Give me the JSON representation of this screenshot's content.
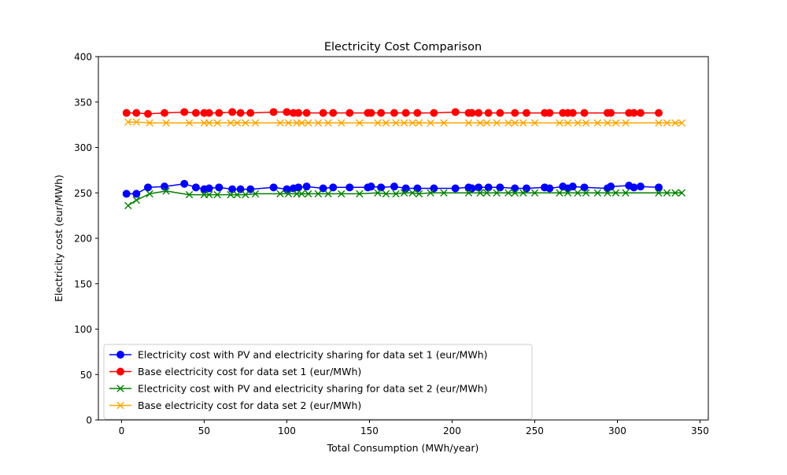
{
  "chart_data": {
    "type": "line",
    "title": "Electricity Cost Comparison",
    "xlabel": "Total Consumption (MWh/year)",
    "ylabel": "Electricity cost (eur/MWh)",
    "xlim": [
      -14,
      355
    ],
    "ylim": [
      0,
      400
    ],
    "xticks": [
      0,
      50,
      100,
      150,
      200,
      250,
      300,
      350
    ],
    "yticks": [
      0,
      50,
      100,
      150,
      200,
      250,
      300,
      350,
      400
    ],
    "grid": false,
    "legend_position": "lower-left",
    "series": [
      {
        "name": "Electricity cost with PV and electricity sharing for data set 1 (eur/MWh)",
        "color": "#0000ff",
        "marker": "circle",
        "x": [
          3,
          9,
          16,
          26,
          38,
          45,
          50,
          53,
          59,
          67,
          72,
          78,
          92,
          100,
          104,
          107,
          112,
          122,
          128,
          138,
          149,
          151,
          157,
          165,
          172,
          179,
          189,
          202,
          210,
          212,
          216,
          222,
          229,
          238,
          245,
          256,
          259,
          267,
          270,
          273,
          280,
          294,
          296,
          307,
          310,
          314,
          325
        ],
        "y": [
          249,
          249,
          256,
          257,
          260,
          256,
          254,
          255,
          256,
          254,
          254,
          254,
          256,
          254,
          255,
          256,
          257,
          255,
          256,
          256,
          256,
          257,
          256,
          257,
          255,
          255,
          255,
          255,
          256,
          255,
          256,
          256,
          256,
          255,
          255,
          256,
          255,
          257,
          255,
          257,
          256,
          255,
          257,
          258,
          256,
          257,
          256
        ]
      },
      {
        "name": "Base electricity cost for data set 1 (eur/MWh)",
        "color": "#ff0000",
        "marker": "circle",
        "x": [
          3,
          9,
          16,
          26,
          38,
          45,
          50,
          53,
          59,
          67,
          72,
          78,
          92,
          100,
          104,
          107,
          112,
          122,
          128,
          138,
          149,
          151,
          157,
          165,
          172,
          179,
          189,
          202,
          210,
          212,
          216,
          222,
          229,
          238,
          245,
          256,
          259,
          267,
          270,
          273,
          280,
          294,
          296,
          307,
          310,
          314,
          325
        ],
        "y": [
          338,
          338,
          337,
          338,
          339,
          338,
          338,
          338,
          338,
          339,
          338,
          338,
          339,
          339,
          338,
          338,
          338,
          338,
          338,
          338,
          338,
          338,
          338,
          338,
          338,
          338,
          338,
          339,
          338,
          338,
          338,
          338,
          338,
          338,
          338,
          338,
          338,
          338,
          338,
          338,
          338,
          338,
          338,
          338,
          338,
          338,
          338
        ]
      },
      {
        "name": "Electricity cost with PV and electricity sharing for data set 2 (eur/MWh)",
        "color": "#008000",
        "marker": "x",
        "x": [
          4,
          9,
          17,
          27,
          41,
          50,
          53,
          58,
          66,
          70,
          75,
          81,
          96,
          101,
          106,
          109,
          113,
          119,
          125,
          133,
          144,
          155,
          160,
          166,
          171,
          176,
          180,
          187,
          195,
          210,
          217,
          221,
          227,
          234,
          238,
          243,
          250,
          265,
          270,
          276,
          281,
          288,
          294,
          299,
          305,
          325,
          330,
          335,
          339
        ],
        "y": [
          236,
          242,
          249,
          252,
          248,
          248,
          248,
          248,
          248,
          248,
          248,
          249,
          249,
          249,
          249,
          249,
          249,
          249,
          249,
          249,
          249,
          250,
          249,
          249,
          250,
          250,
          249,
          250,
          250,
          250,
          250,
          250,
          250,
          250,
          250,
          250,
          250,
          250,
          250,
          250,
          250,
          250,
          250,
          250,
          250,
          250,
          250,
          250,
          250
        ]
      },
      {
        "name": "Base electricity cost for data set 2 (eur/MWh)",
        "color": "#ffa500",
        "marker": "x",
        "x": [
          4,
          9,
          17,
          27,
          41,
          50,
          53,
          58,
          66,
          70,
          75,
          81,
          96,
          101,
          106,
          109,
          113,
          119,
          125,
          133,
          144,
          155,
          160,
          166,
          171,
          176,
          180,
          187,
          195,
          210,
          217,
          221,
          227,
          234,
          238,
          243,
          250,
          265,
          270,
          276,
          281,
          288,
          294,
          299,
          305,
          325,
          330,
          335,
          339
        ],
        "y": [
          328,
          328,
          327,
          327,
          327,
          327,
          327,
          327,
          327,
          327,
          327,
          327,
          327,
          327,
          327,
          327,
          327,
          327,
          327,
          327,
          327,
          327,
          327,
          327,
          327,
          327,
          327,
          327,
          327,
          327,
          327,
          327,
          327,
          327,
          327,
          327,
          327,
          327,
          327,
          327,
          327,
          327,
          327,
          327,
          327,
          327,
          327,
          327,
          327
        ]
      }
    ]
  }
}
